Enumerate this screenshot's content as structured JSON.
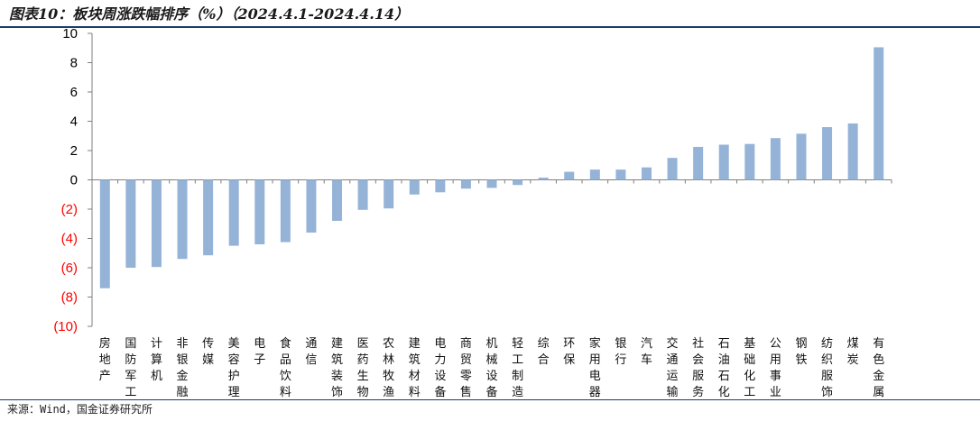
{
  "title": "图表10：板块周涨跌幅排序（%）（2024.4.1-2024.4.14）",
  "source": "来源：Wind，国金证券研究所",
  "colors": {
    "bar": "#95b3d7",
    "positive_tick": "#000000",
    "negative_tick": "#ff0000",
    "axis": "#7f7f7f",
    "rule": "#1f3b6e"
  },
  "chart_data": {
    "type": "bar",
    "title": "",
    "xlabel": "",
    "ylabel": "",
    "ylim": [
      -10,
      10
    ],
    "yticks": [
      10,
      8,
      6,
      4,
      2,
      0,
      -2,
      -4,
      -6,
      -8,
      -10
    ],
    "ytick_labels": [
      "10",
      "8",
      "6",
      "4",
      "2",
      "0",
      "(2)",
      "(4)",
      "(6)",
      "(8)",
      "(10)"
    ],
    "grid": false,
    "legend": "none",
    "categories": [
      "房地产",
      "国防军工",
      "计算机",
      "非银金融",
      "传媒",
      "美容护理",
      "电子",
      "食品饮料",
      "通信",
      "建筑装饰",
      "医药生物",
      "农林牧渔",
      "建筑材料",
      "电力设备",
      "商贸零售",
      "机械设备",
      "轻工制造",
      "综合",
      "环保",
      "家用电器",
      "银行",
      "汽车",
      "交通运输",
      "社会服务",
      "石油石化",
      "基础化工",
      "公用事业",
      "钢铁",
      "纺织服饰",
      "煤炭",
      "有色金属"
    ],
    "values": [
      -7.4,
      -6.0,
      -5.95,
      -5.4,
      -5.15,
      -4.5,
      -4.4,
      -4.25,
      -3.6,
      -2.8,
      -2.05,
      -1.95,
      -1.0,
      -0.85,
      -0.6,
      -0.55,
      -0.35,
      0.15,
      0.55,
      0.7,
      0.7,
      0.85,
      1.5,
      2.25,
      2.4,
      2.45,
      2.85,
      3.15,
      3.6,
      3.85,
      9.05
    ]
  }
}
